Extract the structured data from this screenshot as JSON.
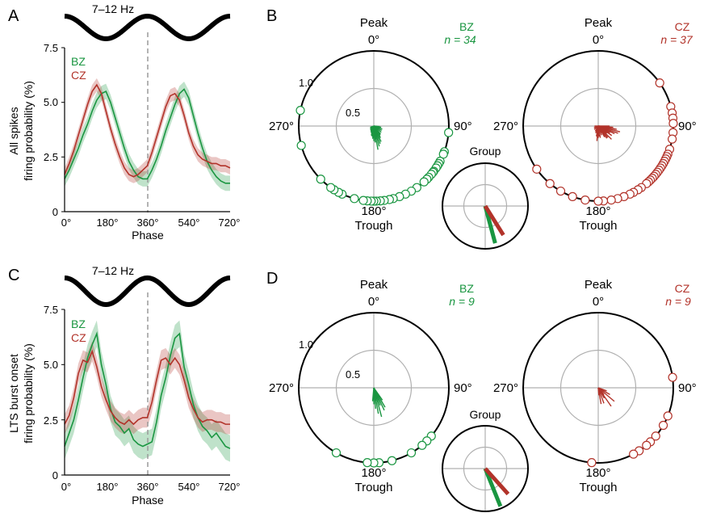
{
  "colors": {
    "bz": "#1a9641",
    "cz": "#b2332a",
    "axis": "#000000",
    "grid": "#b0b0b0",
    "dash": "#9a9a9a"
  },
  "panels": {
    "A": {
      "letter": "A",
      "band": "7–12 Hz",
      "ylabel_line1": "All spikes",
      "ylabel_line2": "firing probability (%)"
    },
    "B": {
      "letter": "B"
    },
    "C": {
      "letter": "C",
      "band": "7–12 Hz",
      "ylabel_line1": "LTS burst onset",
      "ylabel_line2": "firing probability (%)"
    },
    "D": {
      "letter": "D"
    }
  },
  "line_common": {
    "xlabel": "Phase",
    "xticks": [
      "0°",
      "180°",
      "360°",
      "540°",
      "720°"
    ],
    "yticks": [
      "0",
      "2.5",
      "5.0",
      "7.5"
    ]
  },
  "polar_common": {
    "peak": "Peak",
    "trough": "Trough",
    "deg0": "0°",
    "deg90": "90°",
    "deg180": "180°",
    "deg270": "270°",
    "r_outer": "1.0",
    "r_inner": "0.5",
    "group_label": "Group"
  },
  "chart_data": [
    {
      "panel": "A",
      "type": "line",
      "title": "",
      "xlabel": "Phase",
      "ylabel": "All spikes firing probability (%)",
      "xlim": [
        0,
        720
      ],
      "ylim": [
        0,
        7.5
      ],
      "x_step_deg": 20,
      "series": [
        {
          "name": "BZ",
          "color": "#1a9641",
          "values": [
            1.5,
            1.9,
            2.4,
            2.9,
            3.5,
            4.0,
            4.6,
            5.1,
            5.4,
            5.5,
            5.0,
            4.3,
            3.6,
            2.9,
            2.3,
            1.9,
            1.6,
            1.5,
            1.5,
            1.9,
            2.4,
            3.0,
            3.7,
            4.3,
            4.9,
            5.4,
            5.6,
            5.2,
            4.4,
            3.6,
            2.9,
            2.3,
            1.9,
            1.6,
            1.4,
            1.3,
            1.3
          ],
          "sem": 0.35
        },
        {
          "name": "CZ",
          "color": "#b2332a",
          "values": [
            1.7,
            2.2,
            2.8,
            3.5,
            4.2,
            4.9,
            5.5,
            5.8,
            5.4,
            4.6,
            3.8,
            3.1,
            2.5,
            2.0,
            1.7,
            1.6,
            1.7,
            1.9,
            2.1,
            2.7,
            3.4,
            4.1,
            4.8,
            5.3,
            5.4,
            5.1,
            4.4,
            3.6,
            3.0,
            2.6,
            2.4,
            2.3,
            2.2,
            2.2,
            2.1,
            2.1,
            2.0
          ],
          "sem": 0.3
        }
      ]
    },
    {
      "panel": "C",
      "type": "line",
      "title": "",
      "xlabel": "Phase",
      "ylabel": "LTS burst onset firing probability (%)",
      "xlim": [
        0,
        720
      ],
      "ylim": [
        0,
        7.5
      ],
      "x_step_deg": 20,
      "series": [
        {
          "name": "BZ",
          "color": "#1a9641",
          "values": [
            1.3,
            1.9,
            2.5,
            3.4,
            4.4,
            5.3,
            5.9,
            6.4,
            5.0,
            4.1,
            3.0,
            2.4,
            2.2,
            1.9,
            2.1,
            1.6,
            1.4,
            1.3,
            1.4,
            1.5,
            2.4,
            3.6,
            4.4,
            5.4,
            6.2,
            6.4,
            4.9,
            4.1,
            3.2,
            2.6,
            2.2,
            2.0,
            1.7,
            1.9,
            1.6,
            1.3,
            1.2
          ],
          "sem": 0.6
        },
        {
          "name": "CZ",
          "color": "#b2332a",
          "values": [
            2.3,
            2.7,
            3.5,
            4.6,
            5.2,
            5.1,
            5.6,
            4.9,
            4.0,
            3.4,
            2.9,
            2.6,
            2.4,
            2.3,
            2.5,
            2.3,
            2.5,
            2.6,
            2.6,
            3.3,
            4.3,
            5.2,
            5.3,
            5.0,
            5.3,
            5.0,
            4.3,
            3.5,
            3.0,
            2.6,
            2.4,
            2.5,
            2.5,
            2.4,
            2.4,
            2.3,
            2.3
          ],
          "sem": 0.45
        }
      ]
    },
    {
      "panel": "B",
      "type": "polar",
      "rlim": [
        0,
        1.0
      ],
      "rings": [
        0.5,
        1.0
      ],
      "polars": [
        {
          "name": "BZ",
          "n_text": "n = 34",
          "color": "#1a9641",
          "cell_vectors": [
            [
              170,
              0.32
            ],
            [
              165,
              0.28
            ],
            [
              160,
              0.25
            ],
            [
              175,
              0.22
            ],
            [
              180,
              0.2
            ],
            [
              155,
              0.23
            ],
            [
              150,
              0.18
            ],
            [
              145,
              0.15
            ],
            [
              140,
              0.14
            ],
            [
              130,
              0.13
            ],
            [
              120,
              0.12
            ],
            [
              110,
              0.12
            ],
            [
              100,
              0.1
            ],
            [
              95,
              0.08
            ],
            [
              185,
              0.17
            ],
            [
              190,
              0.14
            ],
            [
              195,
              0.13
            ],
            [
              200,
              0.1
            ],
            [
              205,
              0.09
            ],
            [
              210,
              0.08
            ],
            [
              220,
              0.07
            ],
            [
              235,
              0.06
            ],
            [
              250,
              0.05
            ],
            [
              170,
              0.18
            ],
            [
              165,
              0.15
            ],
            [
              160,
              0.1
            ],
            [
              158,
              0.07
            ]
          ],
          "cell_phases": [
            95,
            110,
            112,
            118,
            120,
            122,
            124,
            127,
            128,
            130,
            133,
            135,
            138,
            145,
            150,
            155,
            160,
            165,
            168,
            172,
            175,
            178,
            180,
            182,
            185,
            188,
            195,
            205,
            208,
            212,
            215,
            225,
            255,
            282
          ]
        },
        {
          "name": "CZ",
          "n_text": "n = 37",
          "color": "#b2332a",
          "cell_vectors": [
            [
              140,
              0.2
            ],
            [
              130,
              0.15
            ],
            [
              120,
              0.18
            ],
            [
              115,
              0.24
            ],
            [
              110,
              0.28
            ],
            [
              105,
              0.3
            ],
            [
              100,
              0.25
            ],
            [
              95,
              0.2
            ],
            [
              90,
              0.15
            ],
            [
              150,
              0.17
            ],
            [
              160,
              0.13
            ],
            [
              170,
              0.16
            ],
            [
              175,
              0.14
            ],
            [
              180,
              0.16
            ],
            [
              185,
              0.2
            ],
            [
              190,
              0.14
            ],
            [
              200,
              0.1
            ],
            [
              210,
              0.08
            ],
            [
              230,
              0.07
            ],
            [
              250,
              0.06
            ],
            [
              270,
              0.05
            ],
            [
              125,
              0.22
            ],
            [
              135,
              0.25
            ],
            [
              145,
              0.2
            ],
            [
              155,
              0.1
            ]
          ],
          "cell_phases": [
            55,
            75,
            80,
            84,
            88,
            95,
            100,
            108,
            112,
            114,
            116,
            118,
            120,
            122,
            124,
            126,
            128,
            130,
            132,
            134,
            136,
            138,
            140,
            145,
            148,
            152,
            155,
            160,
            165,
            170,
            176,
            180,
            190,
            200,
            210,
            220,
            235
          ]
        },
        {
          "name": "Group",
          "vectors": [
            {
              "series": "BZ",
              "color": "#1a9641",
              "angle_deg": 165,
              "length": 0.9
            },
            {
              "series": "CZ",
              "color": "#b2332a",
              "angle_deg": 148,
              "length": 0.8
            }
          ]
        }
      ]
    },
    {
      "panel": "D",
      "type": "polar",
      "rlim": [
        0,
        1.0
      ],
      "rings": [
        0.5,
        1.0
      ],
      "polars": [
        {
          "name": "BZ",
          "n_text": "n = 9",
          "color": "#1a9641",
          "cell_vectors": [
            [
              165,
              0.4
            ],
            [
              170,
              0.35
            ],
            [
              155,
              0.33
            ],
            [
              160,
              0.25
            ],
            [
              175,
              0.28
            ],
            [
              150,
              0.3
            ],
            [
              185,
              0.18
            ],
            [
              145,
              0.2
            ],
            [
              180,
              0.22
            ]
          ],
          "cell_phases": [
            130,
            135,
            140,
            150,
            166,
            176,
            180,
            185,
            210
          ]
        },
        {
          "name": "CZ",
          "n_text": "n = 9",
          "color": "#b2332a",
          "cell_vectors": [
            [
              130,
              0.28
            ],
            [
              145,
              0.3
            ],
            [
              160,
              0.22
            ],
            [
              120,
              0.18
            ],
            [
              175,
              0.1
            ],
            [
              150,
              0.16
            ],
            [
              110,
              0.12
            ],
            [
              140,
              0.12
            ],
            [
              170,
              0.22
            ]
          ],
          "cell_phases": [
            82,
            112,
            120,
            130,
            136,
            140,
            147,
            152,
            185
          ]
        },
        {
          "name": "Group",
          "vectors": [
            {
              "series": "BZ",
              "color": "#1a9641",
              "angle_deg": 158,
              "length": 0.95
            },
            {
              "series": "CZ",
              "color": "#b2332a",
              "angle_deg": 138,
              "length": 0.8
            }
          ]
        }
      ]
    }
  ]
}
